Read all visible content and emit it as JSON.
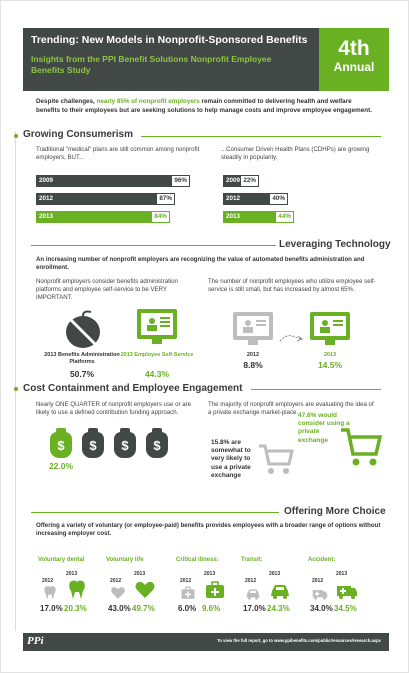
{
  "header": {
    "title": "Trending: New Models in Nonprofit-Sponsored Benefits",
    "subtitle": "Insights from the PPI Benefit Solutions Nonprofit Employee Benefits Study",
    "annual_big": "4th",
    "annual_small": "Annual"
  },
  "intro": {
    "prefix": "Despite challenges, ",
    "highlight": "nearly 85% of nonprofit employers",
    "suffix": " remain committed to delivering health and welfare benefits to their employees but are seeking solutions to help manage costs and improve employee engagement."
  },
  "growing": {
    "title": "Growing Consumerism",
    "left_text": "Traditional \"medical\" plans are still common among nonprofit employers, BUT...",
    "right_text": "...Consumer Driven Health Plans (CDHPs) are growing steadily in popularity.",
    "left_bars": [
      {
        "year": "2009",
        "pct": "96%",
        "value": 96
      },
      {
        "year": "2012",
        "pct": "87%",
        "value": 87
      },
      {
        "year": "2013",
        "pct": "84%",
        "value": 84
      }
    ],
    "right_bars": [
      {
        "year": "2009",
        "pct": "22%",
        "value": 22
      },
      {
        "year": "2012",
        "pct": "40%",
        "value": 40
      },
      {
        "year": "2013",
        "pct": "44%",
        "value": 44
      }
    ]
  },
  "technology": {
    "title": "Leveraging Technology",
    "lead": "An increasing number of nonprofit employers are recognizing the value of automated benefits administration and enrollment.",
    "left_text": "Nonprofit employers consider benefits administration platforms and employee self-service to be VERY IMPORTANT.",
    "right_text": "The number of nonprofit employees who utilize employee self-service is still small, but has increased by almost 65%.",
    "platforms_label": "2013 Benefits Administration Platforms",
    "platforms_value": "50.7%",
    "selfservice_label": "2013 Employee Self-Service",
    "selfservice_value": "44.3%",
    "year_a": "2012",
    "value_a": "8.8%",
    "year_b": "2013",
    "value_b": "14.5%"
  },
  "cost": {
    "title": "Cost Containment and Employee Engagement",
    "left_text": "Nearly ONE QUARTER of nonprofit employers use or are likely to use a defined contribution funding approach.",
    "right_text": "The majority of nonprofit employers are evaluating the idea of a private exchange market-place.",
    "dc_value": "22.0%",
    "dollar_symbol": "$",
    "exchange_a": "15.8% are somewhat to very likely to use a private exchange",
    "exchange_b": "47.6% would consider using a private exchange"
  },
  "choice": {
    "title": "Offering More Choice",
    "lead": "Offering a variety of voluntary (or employee-paid) benefits provides employees with a broader range of options without increasing employer cost.",
    "benefits": [
      {
        "name": "Voluntary dental",
        "y1": "2012",
        "v1": "17.0%",
        "y2": "2013",
        "v2": "20.3%"
      },
      {
        "name": "Voluntary life",
        "y1": "2012",
        "v1": "43.0%",
        "y2": "2013",
        "v2": "49.7%"
      },
      {
        "name": "Critical illness:",
        "y1": "2012",
        "v1": "6.0%",
        "y2": "2013",
        "v2": "9.6%"
      },
      {
        "name": "Transit:",
        "y1": "2012",
        "v1": "17.0%",
        "y2": "2013",
        "v2": "24.3%"
      },
      {
        "name": "Accident:",
        "y1": "2012",
        "v1": "34.0%",
        "y2": "2013",
        "v2": "34.5%"
      }
    ]
  },
  "footer": {
    "logo": "PPi",
    "text": "To view the full report, go to www.ppibenefits.com/public/resources/research.aspx"
  },
  "colors": {
    "green": "#6ab023",
    "dark": "#424845"
  }
}
